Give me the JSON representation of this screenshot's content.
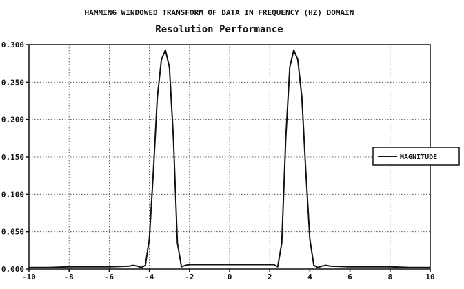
{
  "chart_data": {
    "type": "line",
    "title": "HAMMING WINDOWED TRANSFORM OF DATA IN FREQUENCY (HZ) DOMAIN",
    "subtitle": "Resolution Performance",
    "xlabel": "",
    "ylabel": "",
    "xlim": [
      -10,
      10
    ],
    "ylim": [
      0,
      0.3
    ],
    "xticks": [
      "-10",
      "-8",
      "-6",
      "-4",
      "-2",
      "0",
      "2",
      "4",
      "6",
      "8",
      "10"
    ],
    "yticks": [
      "0.000",
      "0.050",
      "0.100",
      "0.150",
      "0.200",
      "0.250",
      "0.300"
    ],
    "grid": true,
    "legend_position": "right",
    "series": [
      {
        "name": "MAGNITUDE",
        "x": [
          -10,
          -9,
          -8,
          -7,
          -6,
          -5,
          -4.8,
          -4.6,
          -4.4,
          -4.2,
          -4.0,
          -3.8,
          -3.6,
          -3.4,
          -3.2,
          -3.0,
          -2.8,
          -2.6,
          -2.4,
          -2.2,
          -2.0,
          -1.0,
          0,
          1.0,
          2.0,
          2.2,
          2.4,
          2.6,
          2.8,
          3.0,
          3.2,
          3.4,
          3.6,
          3.8,
          4.0,
          4.2,
          4.4,
          4.6,
          4.8,
          5,
          6,
          7,
          8,
          9,
          10
        ],
        "y": [
          0.002,
          0.002,
          0.003,
          0.003,
          0.003,
          0.004,
          0.005,
          0.004,
          0.002,
          0.005,
          0.04,
          0.13,
          0.23,
          0.28,
          0.293,
          0.27,
          0.175,
          0.035,
          0.003,
          0.005,
          0.006,
          0.006,
          0.006,
          0.006,
          0.006,
          0.006,
          0.003,
          0.035,
          0.175,
          0.27,
          0.293,
          0.28,
          0.23,
          0.13,
          0.04,
          0.005,
          0.002,
          0.004,
          0.005,
          0.004,
          0.003,
          0.003,
          0.003,
          0.002,
          0.002
        ]
      }
    ]
  }
}
